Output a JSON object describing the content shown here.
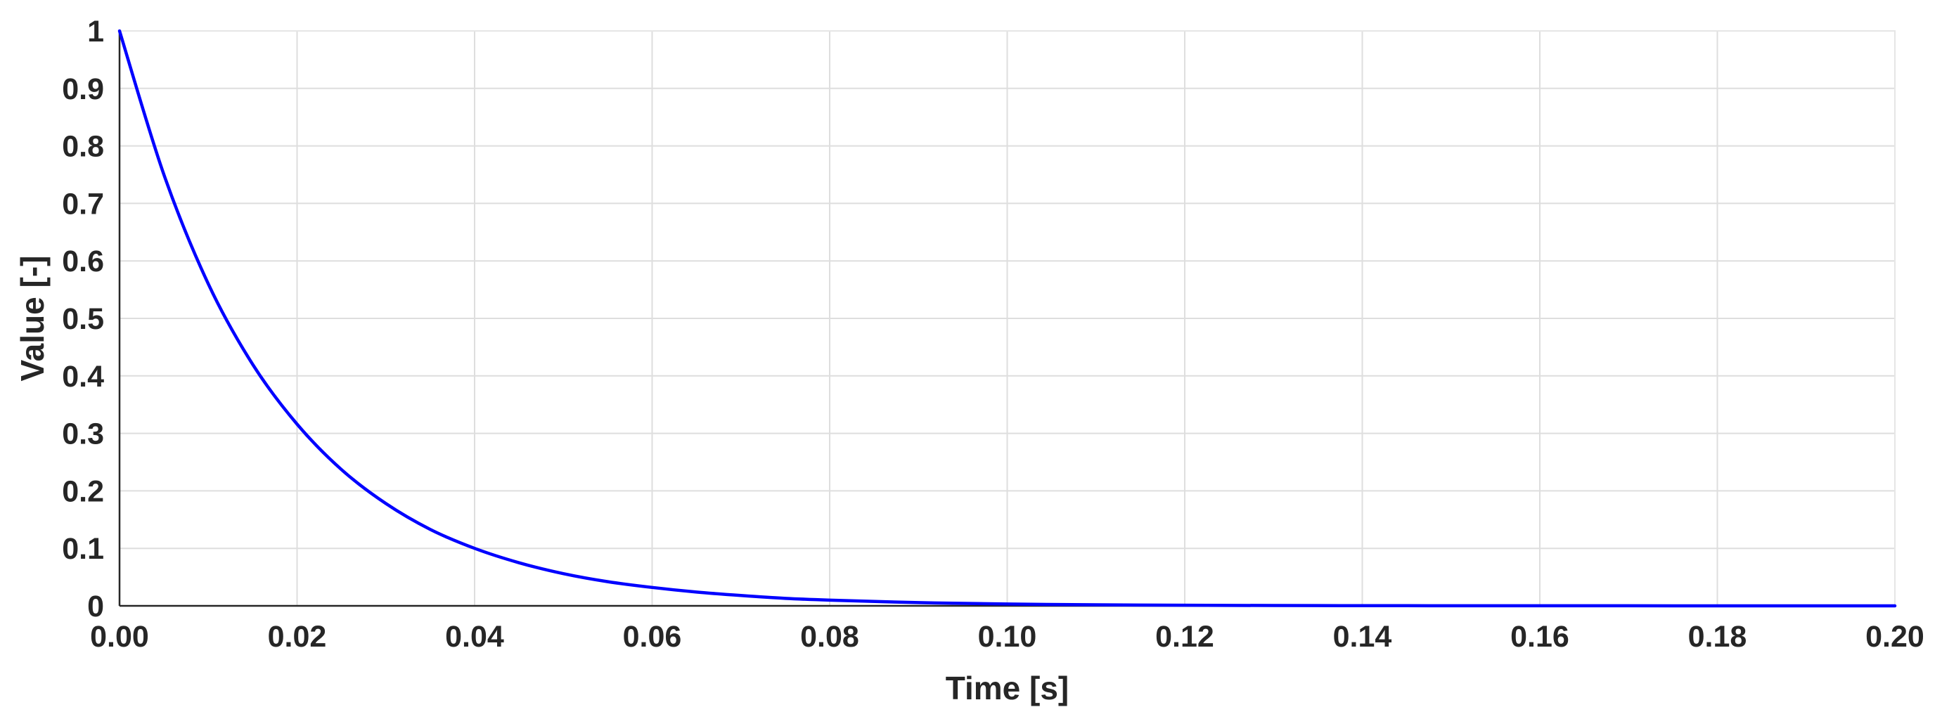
{
  "chart_data": {
    "type": "line",
    "title": "",
    "xlabel": "Time [s]",
    "ylabel": "Value [-]",
    "xlim": [
      0,
      0.2
    ],
    "ylim": [
      0,
      1
    ],
    "x_ticks": [
      "0.00",
      "0.02",
      "0.04",
      "0.06",
      "0.08",
      "0.10",
      "0.12",
      "0.14",
      "0.16",
      "0.18",
      "0.20"
    ],
    "y_ticks": [
      "0",
      "0.1",
      "0.2",
      "0.3",
      "0.4",
      "0.5",
      "0.6",
      "0.7",
      "0.8",
      "0.9",
      "1"
    ],
    "grid": true,
    "legend": "none",
    "series": [
      {
        "color": "#0000ff",
        "x": [
          0.0,
          0.005,
          0.01,
          0.015,
          0.02,
          0.025,
          0.03,
          0.035,
          0.04,
          0.045,
          0.05,
          0.055,
          0.06,
          0.065,
          0.07,
          0.075,
          0.08,
          0.09,
          0.1,
          0.11,
          0.12,
          0.13,
          0.14,
          0.15,
          0.16,
          0.17,
          0.18,
          0.19,
          0.2
        ],
        "y": [
          1.0,
          0.75,
          0.56,
          0.42,
          0.316,
          0.237,
          0.178,
          0.133,
          0.1,
          0.075,
          0.056,
          0.042,
          0.032,
          0.024,
          0.018,
          0.013,
          0.01,
          0.0056,
          0.0032,
          0.0018,
          0.001,
          0.0006,
          0.0003,
          0.0002,
          0.0001,
          0.0001,
          0.0,
          0.0,
          0.0
        ]
      }
    ]
  }
}
